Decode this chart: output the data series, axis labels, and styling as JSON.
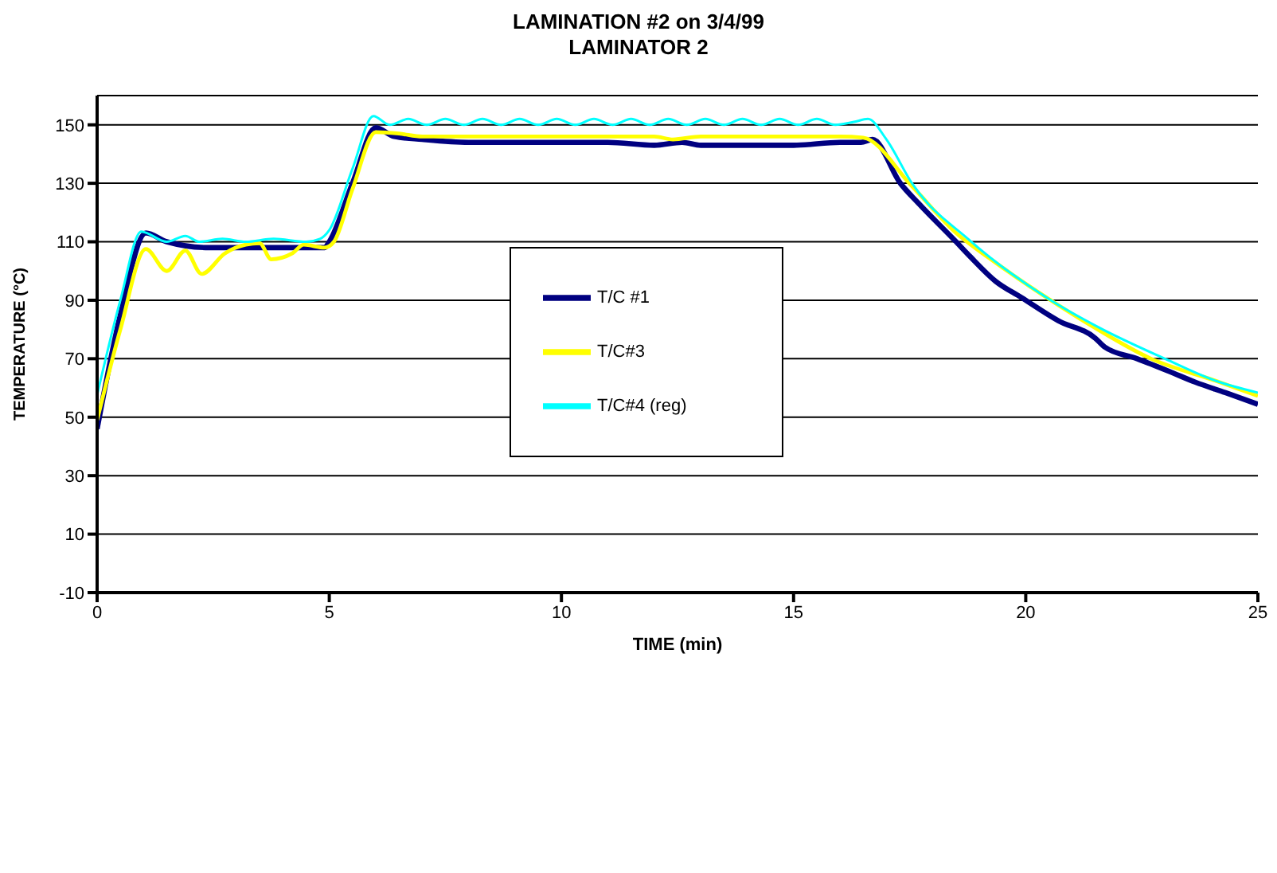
{
  "chart_data": {
    "type": "line",
    "title": "LAMINATION #2 on 3/4/99",
    "subtitle": "LAMINATOR 2",
    "xlabel": "TIME (min)",
    "ylabel": "TEMPERATURE (°C)",
    "xlim": [
      0,
      25
    ],
    "xticks": [
      0,
      5,
      10,
      15,
      20,
      25
    ],
    "ylim": [
      -10,
      160
    ],
    "yticks": [
      -10,
      10,
      30,
      50,
      70,
      90,
      110,
      130,
      150
    ],
    "grid": "y",
    "legend": "center",
    "marker": "none",
    "line_style": "solid",
    "series": [
      {
        "name": "T/C #1",
        "color": "#000080",
        "x": [
          0,
          0.5,
          1.05,
          1.5,
          2.4,
          3,
          4,
          4.7,
          4.9,
          5.0,
          5.5,
          6.0,
          6.4,
          7,
          8,
          9,
          10,
          11,
          12,
          12.6,
          13,
          14,
          15,
          16,
          16.45,
          16.7,
          17.3,
          17.7,
          18.5,
          18.8,
          19.35,
          19.9,
          20.7,
          21.5,
          21.7,
          22.4,
          23.1,
          23.65,
          24.3,
          25
        ],
        "values": [
          46,
          85,
          113,
          110,
          108,
          108,
          108,
          108,
          108,
          110,
          130,
          149,
          146,
          145,
          144,
          144,
          144,
          144,
          143,
          144,
          143,
          143,
          143,
          144,
          144,
          145,
          130,
          123,
          110,
          105,
          96.5,
          91,
          83,
          77,
          74,
          70,
          65.6,
          62,
          58.4,
          54.4
        ]
      },
      {
        "name": "T/C#3",
        "color": "#ffff00",
        "x": [
          0,
          0.5,
          1.05,
          1.5,
          1.9,
          2.25,
          2.75,
          3.2,
          3.5,
          3.75,
          4.2,
          4.45,
          4.9,
          5.1,
          5.5,
          6.0,
          6.5,
          7,
          8,
          9,
          10,
          11,
          12,
          12.4,
          13,
          14,
          15,
          16,
          16.5,
          17.55,
          18.5,
          19.25,
          20.5,
          21.3,
          22.7,
          24.1,
          25
        ],
        "values": [
          49,
          80,
          107.5,
          100,
          107,
          99,
          106,
          109,
          109.5,
          104,
          106,
          109,
          108,
          110,
          128,
          147.5,
          147,
          146,
          146,
          146,
          146,
          146,
          146,
          145,
          146,
          146,
          146,
          146,
          145.6,
          129,
          113,
          104,
          90.4,
          82.4,
          70,
          62.4,
          57.3
        ]
      },
      {
        "name": "T/C#4 (reg)",
        "color": "#00ffff",
        "x": [
          0,
          0.5,
          0.95,
          1.5,
          1.9,
          2.2,
          2.7,
          3.2,
          3.8,
          4.5,
          4.8,
          5.0,
          5.5,
          5.95,
          6.3,
          6.7,
          7.1,
          7.5,
          7.9,
          8.3,
          8.7,
          9.1,
          9.5,
          9.9,
          10.3,
          10.7,
          11.1,
          11.5,
          11.9,
          12.3,
          12.7,
          13.1,
          13.5,
          13.9,
          14.3,
          14.7,
          15.1,
          15.5,
          15.9,
          16.3,
          16.6,
          17.0,
          17.55,
          18.8,
          20.5,
          21.6,
          23.0,
          24.1,
          25
        ],
        "values": [
          57.6,
          90,
          113.5,
          110,
          112,
          110,
          111,
          110,
          111,
          110,
          111,
          114,
          135,
          153,
          150,
          152,
          150,
          152,
          150,
          152,
          150,
          152,
          150,
          152,
          150,
          152,
          150,
          152,
          150,
          152,
          150,
          152,
          150,
          152,
          150,
          152,
          150,
          152,
          150,
          151,
          152,
          145,
          130,
          110.4,
          90.4,
          80.5,
          70,
          62.4,
          58.4
        ]
      }
    ]
  }
}
